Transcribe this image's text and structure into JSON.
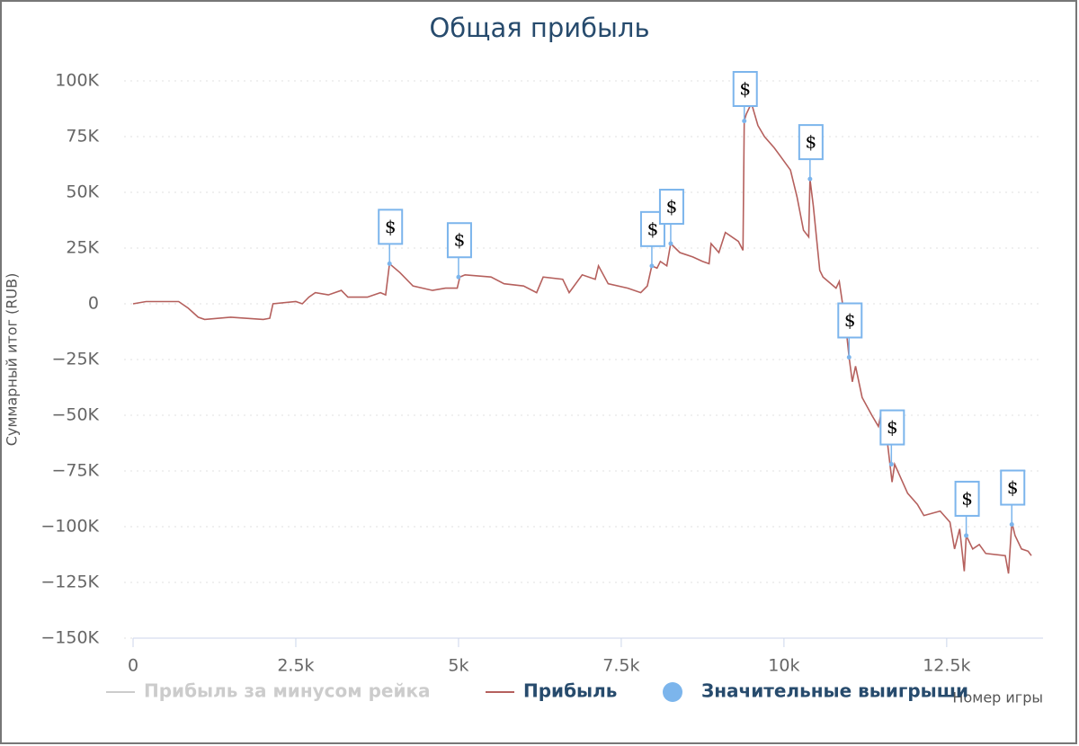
{
  "chart_data": {
    "type": "line",
    "title": "Общая прибыль",
    "x_label": "Номер игры",
    "y_label": "Суммарный итог (RUB)",
    "xlim": [
      0,
      13980
    ],
    "ylim": [
      -150000,
      100000
    ],
    "xticks": [
      0,
      {
        "value": 2500,
        "label": "2.5k"
      },
      {
        "value": 5000,
        "label": "5k"
      },
      {
        "value": 7500,
        "label": "7.5k"
      },
      {
        "value": 10000,
        "label": "10k"
      },
      {
        "value": 12500,
        "label": "12.5k"
      }
    ],
    "yticks": [
      {
        "value": 100000,
        "label": "100K"
      },
      {
        "value": 75000,
        "label": "75K"
      },
      {
        "value": 50000,
        "label": "50K"
      },
      {
        "value": 25000,
        "label": "25K"
      },
      0,
      {
        "value": -25000,
        "label": "−25K"
      },
      {
        "value": -50000,
        "label": "−50K"
      },
      {
        "value": -75000,
        "label": "−75K"
      },
      {
        "value": -100000,
        "label": "−100K"
      },
      {
        "value": -125000,
        "label": "−125K"
      },
      {
        "value": -150000,
        "label": "−150K"
      }
    ],
    "grid": true,
    "series": [
      {
        "name": "Прибыль за минусом рейка",
        "color": "#cccccc",
        "visible": false
      },
      {
        "name": "Прибыль",
        "color": "#b5605d",
        "x": [
          0,
          200,
          700,
          850,
          1000,
          1100,
          1500,
          2000,
          2100,
          2150,
          2500,
          2600,
          2700,
          2800,
          3000,
          3200,
          3300,
          3600,
          3800,
          3880,
          3940,
          4100,
          4300,
          4600,
          4800,
          4980,
          5020,
          5100,
          5500,
          5700,
          6000,
          6200,
          6300,
          6600,
          6700,
          6900,
          7100,
          7150,
          7300,
          7600,
          7800,
          7900,
          7970,
          8050,
          8100,
          8200,
          8260,
          8400,
          8600,
          8750,
          8850,
          8880,
          9000,
          9100,
          9300,
          9370,
          9390,
          9420,
          9500,
          9600,
          9700,
          9850,
          9950,
          10100,
          10200,
          10300,
          10380,
          10400,
          10450,
          10550,
          10600,
          10800,
          10850,
          10950,
          11000,
          11050,
          11100,
          11200,
          11350,
          11450,
          11500,
          11580,
          11620,
          11660,
          11700,
          11900,
          12050,
          12150,
          12400,
          12550,
          12620,
          12700,
          12770,
          12800,
          12900,
          13000,
          13100,
          13400,
          13450,
          13500,
          13550,
          13650,
          13750,
          13800
        ],
        "values": [
          0,
          1000,
          1000,
          -2000,
          -6000,
          -7000,
          -6000,
          -7000,
          -6500,
          0,
          1000,
          0,
          3000,
          5000,
          4000,
          6000,
          3000,
          3000,
          5000,
          4000,
          18000,
          14000,
          8000,
          6000,
          7000,
          7000,
          12000,
          13000,
          12000,
          9000,
          8000,
          5000,
          12000,
          11000,
          5000,
          13000,
          11000,
          17000,
          9000,
          7000,
          5000,
          8000,
          17000,
          16000,
          19000,
          17000,
          27000,
          23000,
          21000,
          19000,
          18000,
          27000,
          23000,
          32000,
          28000,
          24000,
          82000,
          85000,
          90000,
          80000,
          75000,
          70000,
          66000,
          60000,
          48000,
          33000,
          30000,
          56000,
          44000,
          15000,
          12000,
          7000,
          10000,
          -10000,
          -24000,
          -35000,
          -28000,
          -42000,
          -50000,
          -55000,
          -48000,
          -60000,
          -70000,
          -80000,
          -72000,
          -85000,
          -90000,
          -95000,
          -93000,
          -98000,
          -110000,
          -101000,
          -120000,
          -104000,
          -110000,
          -108000,
          -112000,
          -113000,
          -121000,
          -98000,
          -104000,
          -110000,
          -111000,
          -113000
        ]
      },
      {
        "name": "Значительные выигрыши",
        "color": "#7cb5ec",
        "type": "flags",
        "x": [
          3940,
          5000,
          7970,
          8260,
          9390,
          10400,
          11000,
          11650,
          12800,
          13500
        ],
        "values": [
          18000,
          12000,
          17000,
          27000,
          82000,
          56000,
          -24000,
          -72000,
          -104000,
          -99000
        ],
        "labels": [
          "$",
          "$",
          "$",
          "$",
          "$",
          "$",
          "$",
          "$",
          "$",
          "$"
        ]
      }
    ]
  }
}
